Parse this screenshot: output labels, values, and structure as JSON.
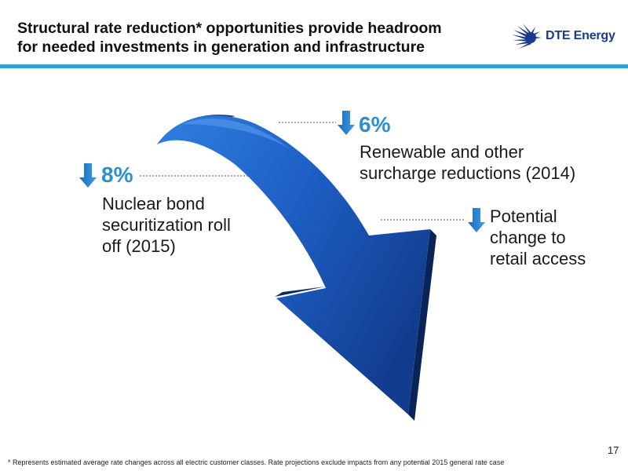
{
  "header": {
    "title_line1": "Structural rate reduction* opportunities provide headroom",
    "title_line2": "for needed investments in generation and infrastructure",
    "logo_text": "DTE Energy",
    "accent_color": "#2a9fd8"
  },
  "diagram": {
    "arrow_color": "#1f5fbf",
    "callouts": [
      {
        "id": "nuclear",
        "percent": "8%",
        "lines": [
          "Nuclear bond",
          "securitization roll",
          "off (2015)"
        ],
        "icon": "down-arrow-icon"
      },
      {
        "id": "renewable",
        "percent": "6%",
        "lines": [
          "Renewable and other",
          "surcharge reductions (2014)"
        ],
        "icon": "down-arrow-icon"
      },
      {
        "id": "retail",
        "percent": "",
        "lines": [
          "Potential",
          "change to",
          "retail access"
        ],
        "icon": "down-arrow-icon"
      }
    ]
  },
  "footer": {
    "footnote": "* Represents estimated average rate changes across all electric customer classes.  Rate projections exclude impacts from any potential 2015 general rate case",
    "page_number": "17"
  }
}
